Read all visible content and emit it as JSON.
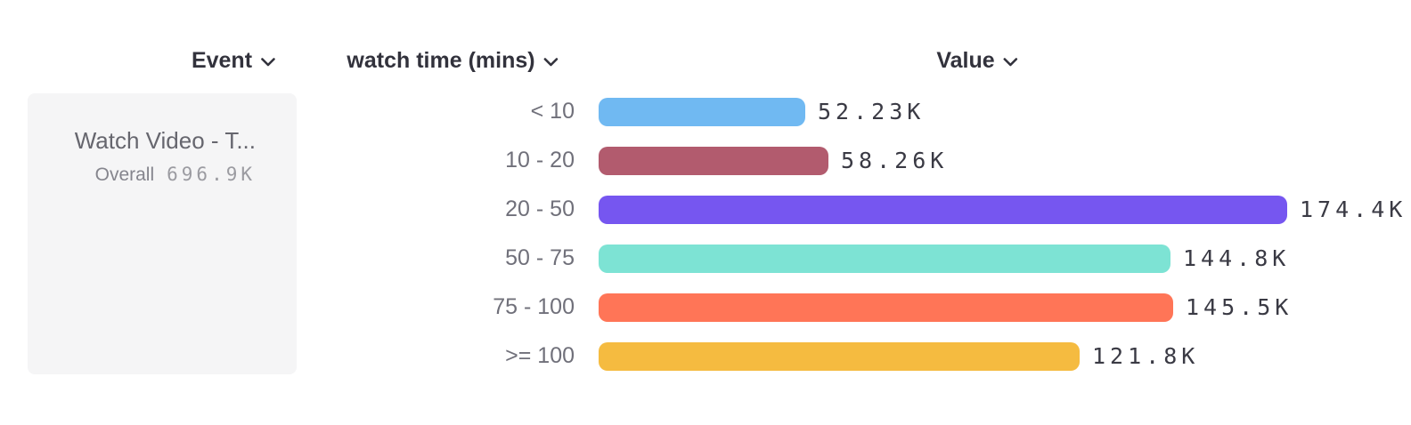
{
  "columns": {
    "event": {
      "label": "Event"
    },
    "breakdown": {
      "label": "watch time (mins)"
    },
    "value": {
      "label": "Value"
    }
  },
  "event_card": {
    "title": "Watch Video - T...",
    "overall_label": "Overall",
    "overall_value": "696.9K"
  },
  "chart_data": {
    "type": "bar",
    "orientation": "horizontal",
    "title": "",
    "xlabel": "Value",
    "ylabel": "watch time (mins)",
    "grid": false,
    "legend": "none",
    "categories": [
      "< 10",
      "10 - 20",
      "20 - 50",
      "50 - 75",
      "75 - 100",
      ">= 100"
    ],
    "values": [
      52.23,
      58.26,
      174.4,
      144.8,
      145.5,
      121.8
    ],
    "value_labels": [
      "52.23K",
      "58.26K",
      "174.4K",
      "144.8K",
      "145.5K",
      "121.8K"
    ],
    "value_unit": "K",
    "max_value": 174.4,
    "overall_total": "696.9K",
    "bar_colors": [
      "#70b9f2",
      "#b25b6e",
      "#7656f0",
      "#7de3d4",
      "#ff7557",
      "#f5bb40"
    ]
  },
  "colors": {
    "header_text": "#32323c",
    "category_text": "#70707a",
    "value_text": "#3a3a44",
    "card_background": "#f5f5f6",
    "card_title_text": "#66666e",
    "background": "#ffffff"
  }
}
